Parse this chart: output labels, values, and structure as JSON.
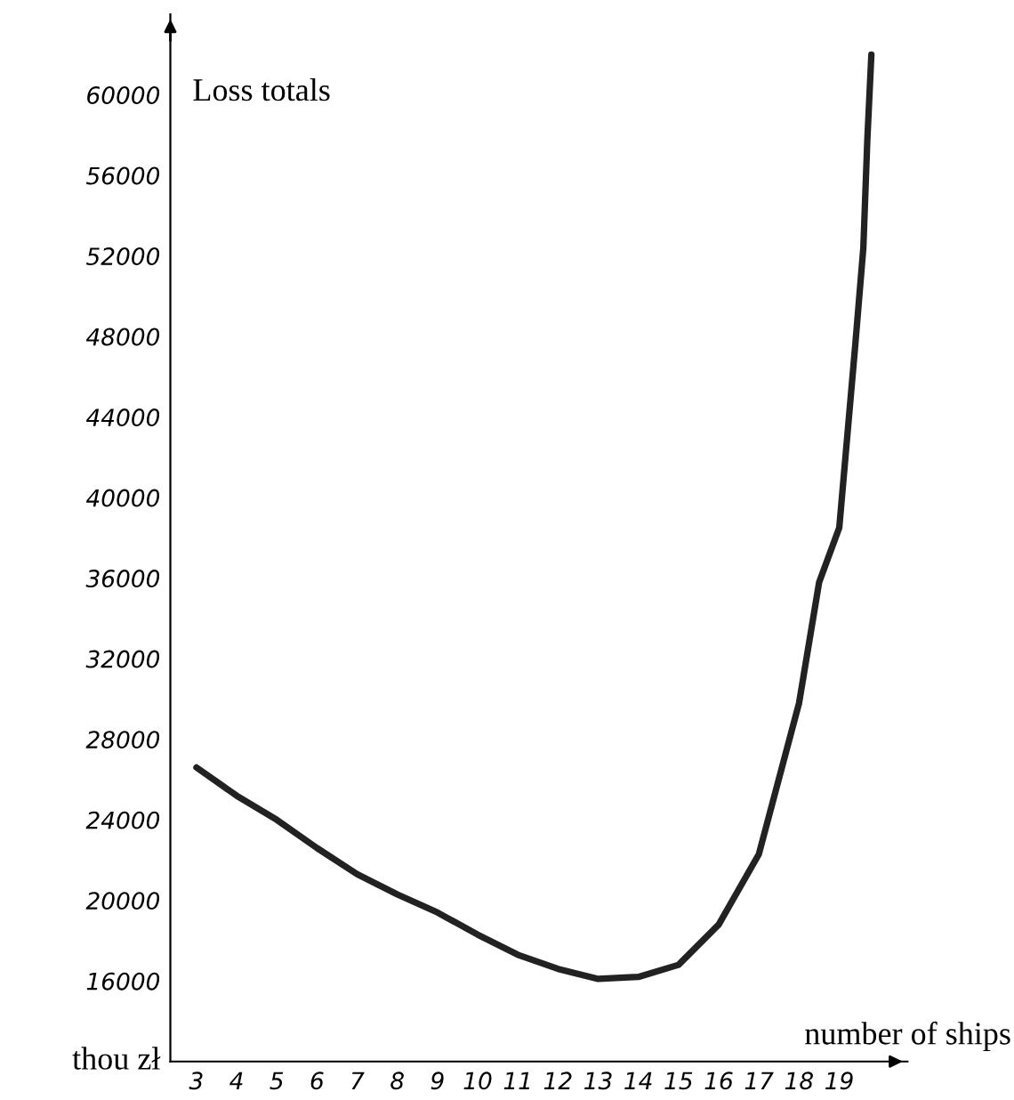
{
  "chart_data": {
    "type": "line",
    "ylabel": "Loss totals",
    "xlabel": "number of ships",
    "annotations": [
      "thou zł"
    ],
    "x": [
      3,
      4,
      5,
      6,
      7,
      8,
      9,
      10,
      11,
      12,
      13,
      14,
      15,
      16,
      17,
      18,
      18.5,
      19,
      19.4,
      19.6,
      19.7,
      19.8
    ],
    "series": [
      {
        "color": "#222222",
        "values": [
          26600,
          25200,
          24000,
          22600,
          21300,
          20300,
          19400,
          18300,
          17300,
          16600,
          16100,
          16200,
          16800,
          18800,
          22300,
          29800,
          35800,
          38500,
          47600,
          52400,
          57800,
          62000
        ]
      }
    ],
    "xlim": [
      2.35,
      20.7
    ],
    "ylim": [
      12000,
      64000
    ],
    "xticks": [
      3,
      4,
      5,
      6,
      7,
      8,
      9,
      10,
      11,
      12,
      13,
      14,
      15,
      16,
      17,
      18,
      19
    ],
    "yticks": [
      16000,
      20000,
      24000,
      28000,
      32000,
      36000,
      40000,
      44000,
      48000,
      52000,
      56000,
      60000
    ],
    "grid": false,
    "legend": false,
    "marker": "none",
    "line_style": "solid"
  }
}
